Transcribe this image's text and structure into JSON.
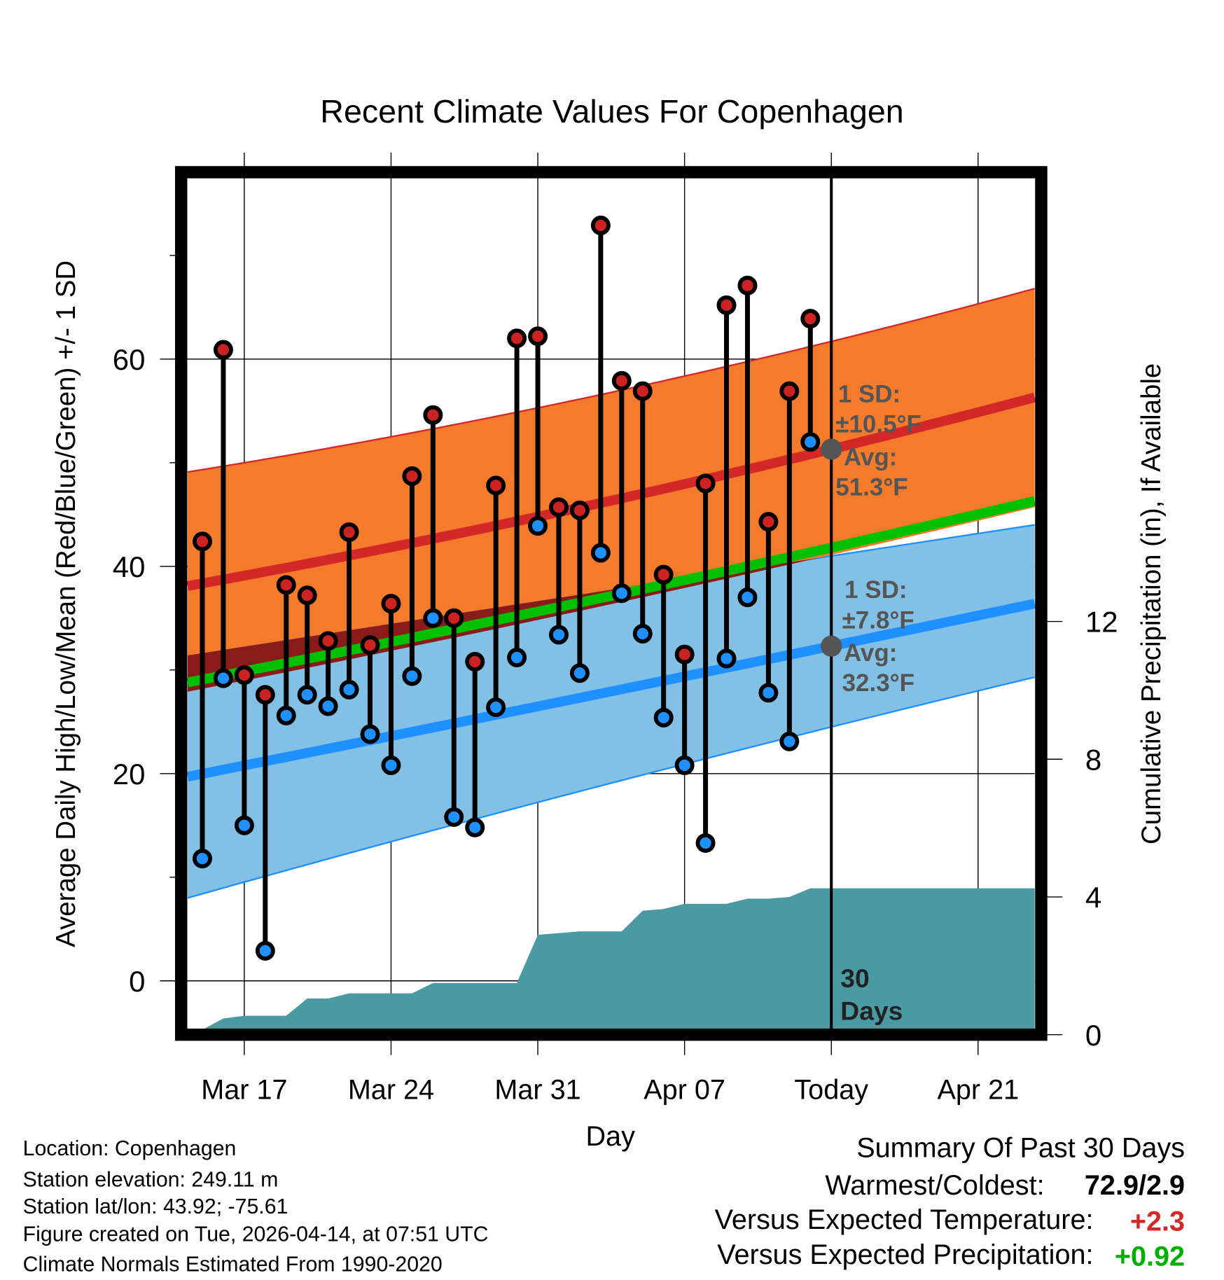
{
  "chart_data": {
    "type": "line",
    "title": "Recent Climate Values For Copenhagen",
    "xlabel": "Day",
    "ylabel": "Average Daily High/Low/Mean (Red/Blue/Green) +/- 1 SD",
    "y2label": "Cumulative Precipitation (in), If Available",
    "xlim_days_from_mar15": [
      -0.7,
      39.7
    ],
    "ylim": [
      -4.5,
      77.2
    ],
    "y2lim": [
      -0.19,
      24.6
    ],
    "x_ticks": [
      {
        "day": 2,
        "label": "Mar 17"
      },
      {
        "day": 9,
        "label": "Mar 24"
      },
      {
        "day": 16,
        "label": "Mar 31"
      },
      {
        "day": 23,
        "label": "Apr 07"
      },
      {
        "day": 30,
        "label": "Today"
      },
      {
        "day": 37,
        "label": "Apr 21"
      }
    ],
    "y_ticks": [
      "0",
      "20",
      "40",
      "60"
    ],
    "y_tick_values": [
      0,
      20,
      40,
      60
    ],
    "y_minor_ticks": [
      10,
      30,
      50,
      70
    ],
    "y2_ticks": [
      "0",
      "4",
      "8",
      "12"
    ],
    "y2_tick_values": [
      0,
      4,
      8,
      12
    ],
    "today_day": 30,
    "window_label": [
      "30",
      "Days"
    ],
    "highs": [
      42.4,
      60.9,
      29.5,
      27.6,
      38.2,
      37.2,
      32.8,
      43.3,
      32.4,
      36.4,
      48.7,
      54.6,
      35.0,
      30.8,
      47.8,
      62.0,
      62.2,
      45.7,
      45.4,
      72.9,
      57.9,
      56.9,
      39.2,
      31.5,
      48.0,
      65.2,
      67.1,
      44.3,
      56.9,
      63.9
    ],
    "lows": [
      11.8,
      29.2,
      15.0,
      2.9,
      25.6,
      27.6,
      26.5,
      28.1,
      23.8,
      20.8,
      29.4,
      35.0,
      15.8,
      14.8,
      26.4,
      31.2,
      43.9,
      33.4,
      29.7,
      41.3,
      37.4,
      33.5,
      25.4,
      20.8,
      13.3,
      31.1,
      37.0,
      27.8,
      23.1,
      52.0
    ],
    "precip_cumulative": [
      0,
      0.47,
      0.55,
      0.55,
      0.55,
      1.05,
      1.05,
      1.2,
      1.2,
      1.2,
      1.2,
      1.5,
      1.5,
      1.5,
      1.5,
      1.5,
      2.9,
      2.95,
      3.0,
      3.0,
      3.0,
      3.6,
      3.65,
      3.8,
      3.8,
      3.8,
      3.95,
      3.95,
      4.0,
      4.25
    ],
    "normals_control_days": [
      -0.7,
      30,
      39.7
    ],
    "normal_high": [
      38.1,
      51.3,
      56.3
    ],
    "normal_high_upper": [
      49.1,
      61.7,
      66.8
    ],
    "normal_high_lower": [
      27.9,
      41.1,
      45.7
    ],
    "normal_mean": [
      28.8,
      41.8,
      46.3
    ],
    "normal_low": [
      19.7,
      32.3,
      36.4
    ],
    "normal_low_upper": [
      31.4,
      41.0,
      44.0
    ],
    "normal_low_lower": [
      8.0,
      24.5,
      29.3
    ],
    "high_annotation": [
      "1 SD:",
      "±10.5°F",
      "Avg:",
      "51.3°F"
    ],
    "low_annotation": [
      "1 SD:",
      "±7.8°F",
      "Avg:",
      "32.3°F"
    ],
    "colors": {
      "high_band": "#f47a2c",
      "high_line": "#d42828",
      "low_band": "#83c0e6",
      "low_line": "#1e90ff",
      "mean_line": "#00c000",
      "precip": "#4a9aa3",
      "overlap": "#8b1a1a"
    }
  },
  "footer": {
    "location": "Location: Copenhagen",
    "elevation": "Station elevation: 249.11 m",
    "latlon": "Station lat/lon: 43.92; -75.61",
    "created": "Figure created on Tue, 2026-04-14, at 07:51 UTC",
    "normals": "Climate Normals Estimated From 1990-2020"
  },
  "summary": {
    "title": "Summary Of Past 30 Days",
    "warmest_label": "Warmest/Coldest:",
    "warmest_value": "72.9/2.9",
    "temp_label": "Versus Expected Temperature:",
    "temp_value": "+2.3",
    "precip_label": "Versus Expected Precipitation:",
    "precip_value": "+0.92",
    "temp_color": "#d42828",
    "precip_color": "#00b000"
  }
}
